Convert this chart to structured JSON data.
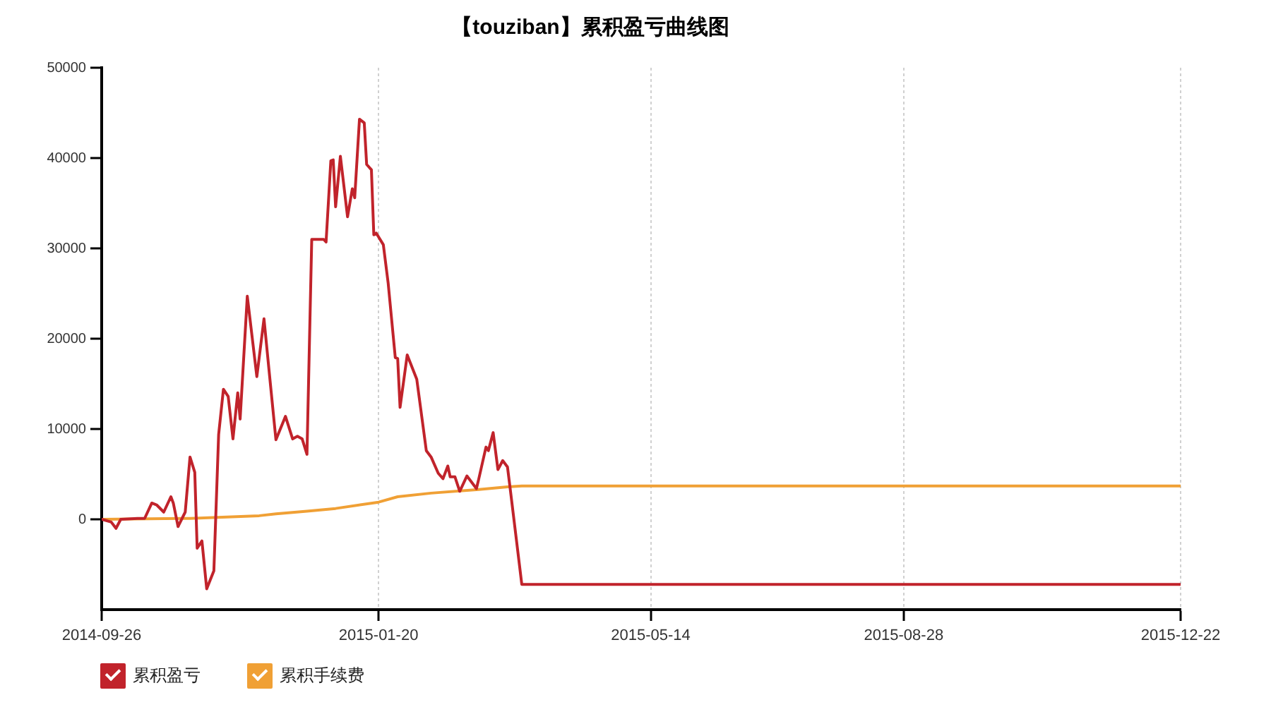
{
  "chart_data": {
    "type": "line",
    "title": "【touziban】累积盈亏曲线图",
    "xlim": [
      "2014-09-26",
      "2015-12-22"
    ],
    "xticks": [
      "2014-09-26",
      "2015-01-20",
      "2015-05-14",
      "2015-08-28",
      "2015-12-22"
    ],
    "ylim": [
      -10000,
      50000
    ],
    "yticks": [
      0,
      10000,
      20000,
      30000,
      40000,
      50000
    ],
    "grid": "x",
    "legend": "bottom left",
    "marker": "none",
    "line_style": "solid",
    "series": [
      {
        "name": "累积盈亏",
        "color": "#c1232b",
        "x": [
          "2014-09-26",
          "2014-09-30",
          "2014-10-02",
          "2014-10-04",
          "2014-10-11",
          "2014-10-14",
          "2014-10-17",
          "2014-10-19",
          "2014-10-22",
          "2014-10-25",
          "2014-10-26",
          "2014-10-28",
          "2014-10-31",
          "2014-11-02",
          "2014-11-04",
          "2014-11-05",
          "2014-11-07",
          "2014-11-09",
          "2014-11-12",
          "2014-11-14",
          "2014-11-16",
          "2014-11-18",
          "2014-11-20",
          "2014-11-22",
          "2014-11-23",
          "2014-11-26",
          "2014-11-30",
          "2014-12-03",
          "2014-12-05",
          "2014-12-08",
          "2014-12-12",
          "2014-12-15",
          "2014-12-17",
          "2014-12-19",
          "2014-12-21",
          "2014-12-23",
          "2014-12-28",
          "2014-12-29",
          "2014-12-31",
          "2015-01-01",
          "2015-01-02",
          "2015-01-04",
          "2015-01-07",
          "2015-01-09",
          "2015-01-10",
          "2015-01-12",
          "2015-01-14",
          "2015-01-15",
          "2015-01-17",
          "2015-01-18",
          "2015-01-19",
          "2015-01-22",
          "2015-01-24",
          "2015-01-27",
          "2015-01-28",
          "2015-01-29",
          "2015-02-01",
          "2015-02-05",
          "2015-02-09",
          "2015-02-11",
          "2015-02-14",
          "2015-02-16",
          "2015-02-18",
          "2015-02-19",
          "2015-02-21",
          "2015-02-23",
          "2015-02-26",
          "2015-03-02",
          "2015-03-03",
          "2015-03-06",
          "2015-03-07",
          "2015-03-09",
          "2015-03-11",
          "2015-03-13",
          "2015-03-15",
          "2015-03-16",
          "2015-03-21",
          "2015-12-22"
        ],
        "values": [
          0,
          -300,
          -1000,
          0,
          100,
          100,
          1800,
          1600,
          800,
          2500,
          1800,
          -800,
          800,
          6900,
          5200,
          -3200,
          -2400,
          -7700,
          -5700,
          9400,
          14400,
          13600,
          8900,
          14000,
          11100,
          24700,
          15800,
          22200,
          16800,
          8800,
          11400,
          8900,
          9200,
          8900,
          7200,
          31000,
          31000,
          30700,
          39700,
          39800,
          34600,
          40200,
          33500,
          36600,
          35600,
          44300,
          43900,
          39300,
          38700,
          31500,
          31700,
          30400,
          26200,
          17900,
          17800,
          12400,
          18200,
          15500,
          7600,
          6900,
          5100,
          4500,
          5900,
          4700,
          4700,
          3100,
          4800,
          3400,
          4500,
          8000,
          7600,
          9600,
          5500,
          6500,
          5800,
          3700,
          -7200,
          -7200
        ]
      },
      {
        "name": "累积手续费",
        "color": "#f0a035",
        "x": [
          "2014-09-26",
          "2014-11-02",
          "2014-12-01",
          "2014-12-08",
          "2014-12-21",
          "2015-01-02",
          "2015-01-20",
          "2015-01-28",
          "2015-02-11",
          "2015-03-03",
          "2015-03-15",
          "2015-03-21",
          "2015-12-22"
        ],
        "values": [
          0,
          100,
          400,
          600,
          900,
          1200,
          1900,
          2500,
          2900,
          3300,
          3600,
          3700,
          3700
        ]
      }
    ]
  }
}
